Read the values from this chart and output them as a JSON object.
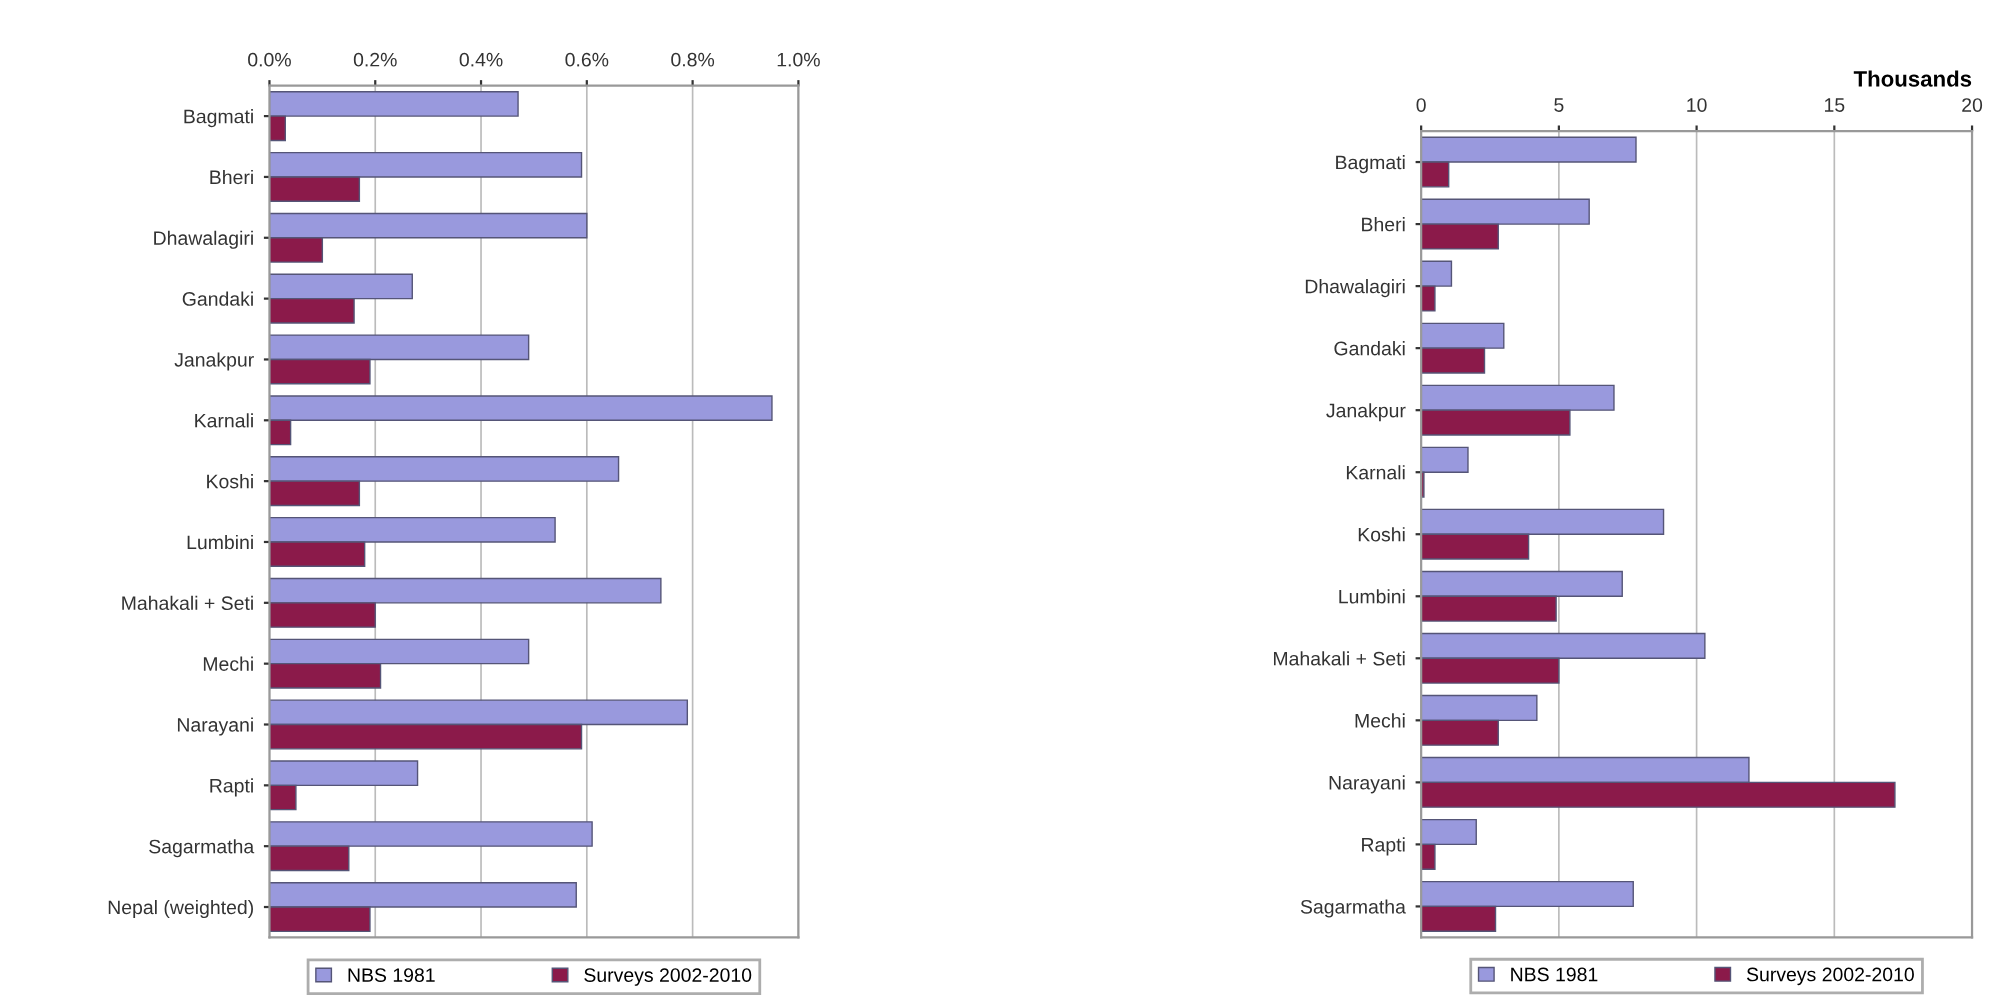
{
  "chart_data": [
    {
      "type": "bar",
      "orientation": "horizontal",
      "categories": [
        "Bagmati",
        "Bheri",
        "Dhawalagiri",
        "Gandaki",
        "Janakpur",
        "Karnali",
        "Koshi",
        "Lumbini",
        "Mahakali + Seti",
        "Mechi",
        "Narayani",
        "Rapti",
        "Sagarmatha",
        "Nepal (weighted)"
      ],
      "series": [
        {
          "name": "NBS 1981",
          "color": "#9999dd",
          "values": [
            0.47,
            0.59,
            0.6,
            0.27,
            0.49,
            0.95,
            0.66,
            0.54,
            0.74,
            0.49,
            0.79,
            0.28,
            0.61,
            0.58
          ]
        },
        {
          "name": "Surveys 2002-2010",
          "color": "#8b1a4a",
          "values": [
            0.03,
            0.17,
            0.1,
            0.16,
            0.19,
            0.04,
            0.17,
            0.18,
            0.2,
            0.21,
            0.59,
            0.05,
            0.15,
            0.19
          ]
        }
      ],
      "xlim": [
        0,
        1.0
      ],
      "xticks": [
        {
          "value": 0,
          "label": "0.0%"
        },
        {
          "value": 0.2,
          "label": "0.2%"
        },
        {
          "value": 0.4,
          "label": "0.4%"
        },
        {
          "value": 0.6,
          "label": "0.6%"
        },
        {
          "value": 0.8,
          "label": "0.8%"
        },
        {
          "value": 1.0,
          "label": "1.0%"
        }
      ],
      "grid": "x",
      "legend": "bottom"
    },
    {
      "type": "bar",
      "orientation": "horizontal",
      "xlabel": "Thousands",
      "categories": [
        "Bagmati",
        "Bheri",
        "Dhawalagiri",
        "Gandaki",
        "Janakpur",
        "Karnali",
        "Koshi",
        "Lumbini",
        "Mahakali + Seti",
        "Mechi",
        "Narayani",
        "Rapti",
        "Sagarmatha"
      ],
      "series": [
        {
          "name": "NBS 1981",
          "color": "#9999dd",
          "values": [
            7.8,
            6.1,
            1.1,
            3.0,
            7.0,
            1.7,
            8.8,
            7.3,
            10.3,
            4.2,
            11.9,
            2.0,
            7.7
          ]
        },
        {
          "name": "Surveys 2002-2010",
          "color": "#8b1a4a",
          "values": [
            1.0,
            2.8,
            0.5,
            2.3,
            5.4,
            0.1,
            3.9,
            4.9,
            5.0,
            2.8,
            17.2,
            0.5,
            2.7
          ]
        }
      ],
      "xlim": [
        0,
        20
      ],
      "xticks": [
        0,
        5,
        10,
        15,
        20
      ],
      "grid": "x",
      "legend": "bottom"
    }
  ]
}
